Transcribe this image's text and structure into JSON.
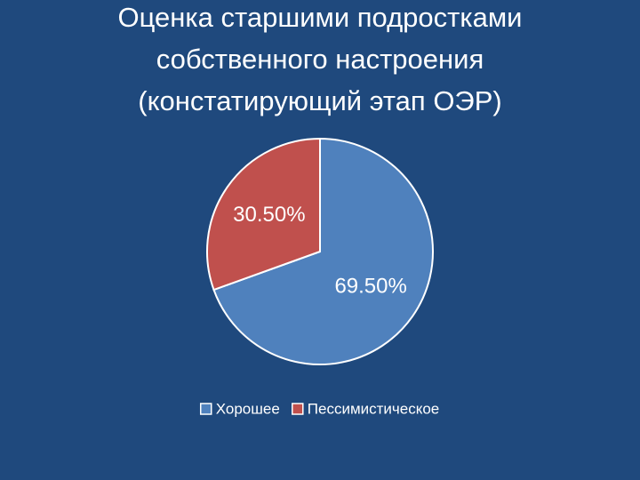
{
  "chart_data": {
    "type": "pie",
    "title": [
      "Оценка старшими подростками",
      "собственного настроения",
      "(констатирующий этап ОЭР)"
    ],
    "categories": [
      "Хорошее",
      "Пессимистическое"
    ],
    "values": [
      69.5,
      30.5
    ],
    "value_labels": [
      "69.50%",
      "30.50%"
    ],
    "colors": [
      "#4f81bd",
      "#c0504d"
    ],
    "legend": "bottom"
  }
}
